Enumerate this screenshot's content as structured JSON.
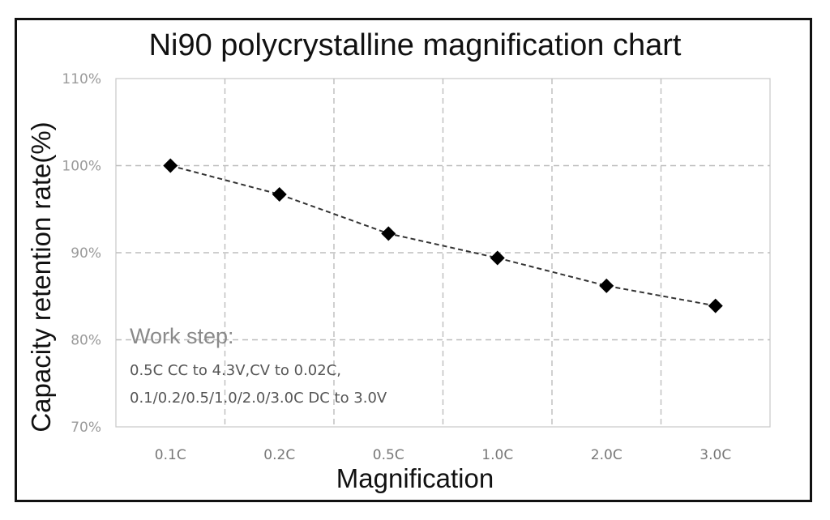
{
  "chart_data": {
    "type": "line",
    "title": "Ni90 polycrystalline magnification chart",
    "xlabel": "Magnification",
    "ylabel": "Capacity retention rate(%)",
    "categories": [
      "0.1C",
      "0.2C",
      "0.5C",
      "1.0C",
      "2.0C",
      "3.0C"
    ],
    "series": [
      {
        "values": [
          100.0,
          96.7,
          92.2,
          89.4,
          86.2,
          83.9
        ]
      }
    ],
    "ylim": [
      70,
      110
    ],
    "yticks": [
      "70%",
      "80%",
      "90%",
      "100%",
      "110%"
    ],
    "grid": true,
    "line_style": "dashed",
    "marker": "diamond",
    "line_color": "#333333",
    "marker_color": "#000000"
  },
  "annotation": {
    "heading": "Work step:",
    "lines": [
      "0.5C CC to 4.3V,CV to 0.02C,",
      "0.1/0.2/0.5/1.0/2.0/3.0C DC to 3.0V"
    ]
  }
}
